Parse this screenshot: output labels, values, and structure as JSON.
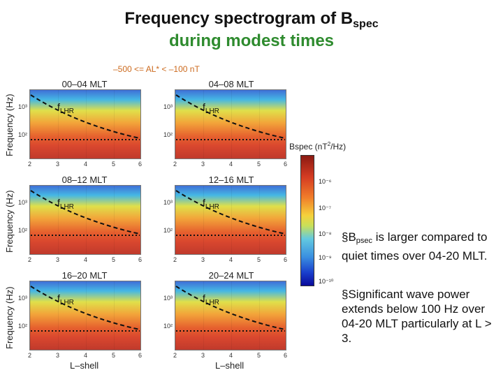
{
  "title": {
    "line1_prefix": "Frequency spectrogram of B",
    "line1_sub": "spec",
    "line2": "during modest times"
  },
  "condition": "–500 <= AL* < –100 nT",
  "ylabel": "Frequency (Hz)",
  "xlabel": "L–shell",
  "x_ticks": [
    "2",
    "3",
    "4",
    "5",
    "6"
  ],
  "y_ticks": {
    "upper": "10³",
    "lower": "10²"
  },
  "flhr_label": {
    "main": "f",
    "sub": "LHR"
  },
  "panels": [
    {
      "title": "00–04 MLT"
    },
    {
      "title": "04–08 MLT"
    },
    {
      "title": "08–12 MLT"
    },
    {
      "title": "12–16 MLT"
    },
    {
      "title": "16–20 MLT"
    },
    {
      "title": "20–24 MLT"
    }
  ],
  "colorbar": {
    "title_prefix": "Bspec (nT",
    "title_sup": "2",
    "title_suffix": "/Hz)",
    "ticks": [
      "10⁻⁶",
      "10⁻⁷",
      "10⁻⁸",
      "10⁻⁹",
      "10⁻¹⁰"
    ]
  },
  "notes": {
    "n1_prefix": "§B",
    "n1_sub": "psec",
    "n1_text": " is larger compared to quiet times over 04-20 MLT.",
    "n2": "§Significant wave power extends below 100 Hz over 04-20 MLT particularly at L > 3."
  },
  "colors": {
    "title_green": "#2e8b2e",
    "condition_orange": "#cc6a1e"
  }
}
